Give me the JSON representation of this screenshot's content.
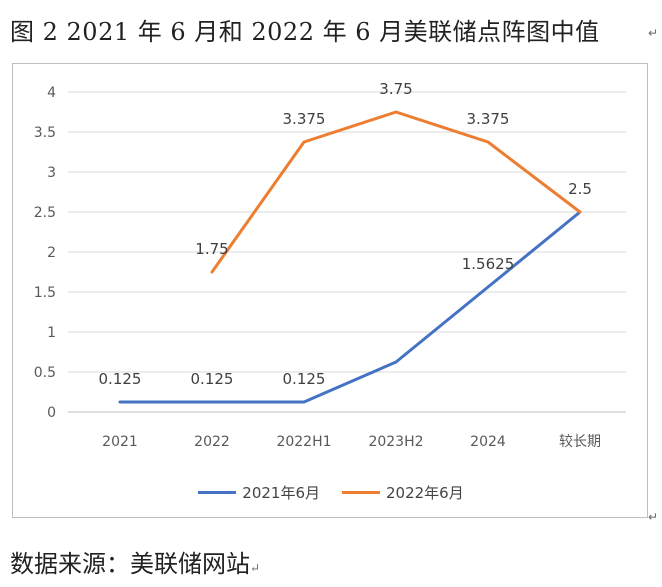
{
  "figure_title": "图 2   2021 年 6 月和 2022 年 6 月美联储点阵图中值",
  "source_note": "数据来源：美联储网站",
  "paragraph_mark": "↵",
  "chart_data": {
    "type": "line",
    "title": "",
    "xlabel": "",
    "ylabel": "",
    "categories": [
      "2021",
      "2022",
      "2022H1",
      "2023H2",
      "2024",
      "较长期"
    ],
    "ylim": [
      0,
      4
    ],
    "yticks": [
      "0",
      "0.5",
      "1",
      "1.5",
      "2",
      "2.5",
      "3",
      "3.5",
      "4"
    ],
    "grid": true,
    "legend_position": "bottom",
    "series": [
      {
        "name": "2021年6月",
        "color": "#4472C4",
        "values": [
          0.125,
          0.125,
          0.125,
          0.625,
          1.5625,
          2.5
        ],
        "labels": [
          "0.125",
          "0.125",
          "0.125",
          null,
          "1.5625",
          null
        ]
      },
      {
        "name": "2022年6月",
        "color": "#ED7D31",
        "values": [
          null,
          1.75,
          3.375,
          3.75,
          3.375,
          2.5
        ],
        "labels": [
          null,
          "1.75",
          "3.375",
          "3.75",
          "3.375",
          "2.5"
        ]
      }
    ]
  }
}
